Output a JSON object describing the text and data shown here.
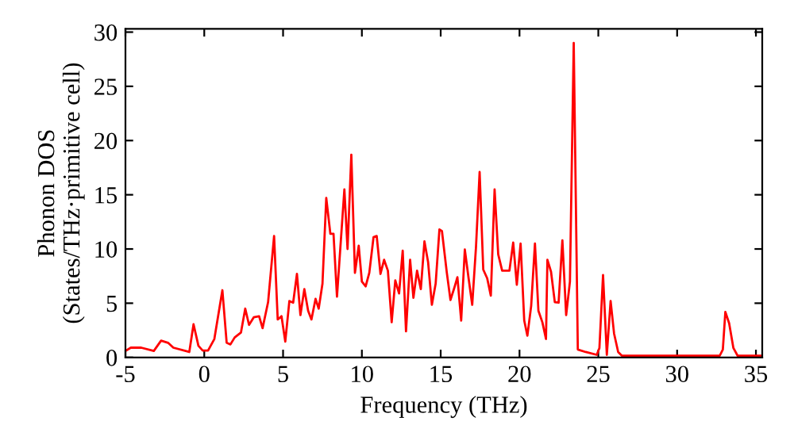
{
  "chart_data": {
    "type": "line",
    "xlabel": "Frequency (THz)",
    "ylabel": "Phonon DOS\n(States/THz·primitive cell)",
    "xlim": [
      -5,
      35.4
    ],
    "ylim": [
      0,
      30.3
    ],
    "xticks": [
      -5,
      0,
      5,
      10,
      15,
      20,
      25,
      30,
      35
    ],
    "yticks": [
      0,
      5,
      10,
      15,
      20,
      25,
      30
    ],
    "grid": false,
    "legend": false,
    "marker": "none",
    "line_style": "solid",
    "series": [
      {
        "color": "#ff0000",
        "x": [
          -5,
          -4.66,
          -4,
          -3.2,
          -2.74,
          -2.3,
          -1.96,
          -0.95,
          -0.68,
          -0.37,
          -0.1,
          0.24,
          0.64,
          1.15,
          1.42,
          1.66,
          1.93,
          2.33,
          2.6,
          2.84,
          3.14,
          3.48,
          3.7,
          4.05,
          4.43,
          4.66,
          4.9,
          5.14,
          5.4,
          5.64,
          5.88,
          6.1,
          6.35,
          6.59,
          6.8,
          7.06,
          7.26,
          7.5,
          7.74,
          8.0,
          8.2,
          8.42,
          8.89,
          9.09,
          9.33,
          9.56,
          9.8,
          10.0,
          10.24,
          10.47,
          10.74,
          10.94,
          11.18,
          11.41,
          11.65,
          11.89,
          12.12,
          12.36,
          12.59,
          12.8,
          13.06,
          13.27,
          13.5,
          13.74,
          13.97,
          14.2,
          14.44,
          14.68,
          14.92,
          15.08,
          15.39,
          15.62,
          15.86,
          16.06,
          16.3,
          16.53,
          16.77,
          17.0,
          17.24,
          17.47,
          17.7,
          17.95,
          18.18,
          18.42,
          18.65,
          18.9,
          19.22,
          19.36,
          19.6,
          19.83,
          20.07,
          20.3,
          20.5,
          20.74,
          20.98,
          21.2,
          21.45,
          21.68,
          21.77,
          22.0,
          22.24,
          22.48,
          22.72,
          22.96,
          23.2,
          23.44,
          23.7,
          24.2,
          24.9,
          25.07,
          25.3,
          25.54,
          25.78,
          26.0,
          26.26,
          26.5,
          32.7,
          32.9,
          33.06,
          33.3,
          33.57,
          33.84,
          35.4
        ],
        "values": [
          0.6,
          0.9,
          0.9,
          0.6,
          1.55,
          1.35,
          0.9,
          0.5,
          3.06,
          1.07,
          0.63,
          0.63,
          1.7,
          6.2,
          1.36,
          1.2,
          1.84,
          2.3,
          4.5,
          3.0,
          3.7,
          3.8,
          2.7,
          5.1,
          11.2,
          3.5,
          3.8,
          1.46,
          5.2,
          5.05,
          7.7,
          3.9,
          6.3,
          4.3,
          3.5,
          5.4,
          4.5,
          6.8,
          14.7,
          11.4,
          11.4,
          5.6,
          15.5,
          10.0,
          18.7,
          7.8,
          10.3,
          7.0,
          6.55,
          7.8,
          11.1,
          11.2,
          7.7,
          9.0,
          8.0,
          3.25,
          7.1,
          5.9,
          9.85,
          2.4,
          9.0,
          5.5,
          8.0,
          6.3,
          10.7,
          8.8,
          4.85,
          6.8,
          11.8,
          11.65,
          7.8,
          5.3,
          6.4,
          7.4,
          3.4,
          9.95,
          7.3,
          4.85,
          10.2,
          17.1,
          8.1,
          7.3,
          5.7,
          15.5,
          9.5,
          8.0,
          8.0,
          8.0,
          10.6,
          6.7,
          10.5,
          3.4,
          2.0,
          4.75,
          10.5,
          4.3,
          3.25,
          1.7,
          9.0,
          7.9,
          5.1,
          5.05,
          10.8,
          3.9,
          7.0,
          29.0,
          0.73,
          0.5,
          0.24,
          0.87,
          7.6,
          0.24,
          5.2,
          2.2,
          0.5,
          0.15,
          0.15,
          0.73,
          4.2,
          3.15,
          0.87,
          0.15,
          0.15
        ]
      }
    ]
  }
}
